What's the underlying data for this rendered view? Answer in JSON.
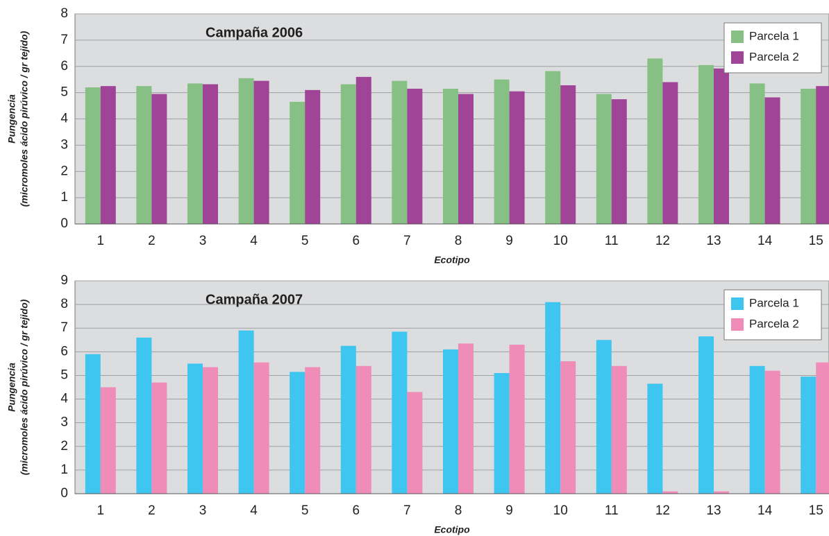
{
  "chart_data": [
    {
      "type": "bar",
      "title": "Campaña 2006",
      "x_label": "Ecotipo",
      "y_label": [
        "Pungencia",
        "(micromoles ácido pirúvico / gr tejido)"
      ],
      "categories": [
        "1",
        "2",
        "3",
        "4",
        "5",
        "6",
        "7",
        "8",
        "9",
        "10",
        "11",
        "12",
        "13",
        "14",
        "15"
      ],
      "series": [
        {
          "name": "Parcela 1",
          "color": "#86c084",
          "values": [
            5.2,
            5.25,
            5.35,
            5.55,
            4.65,
            5.32,
            5.45,
            5.15,
            5.5,
            5.82,
            4.95,
            6.3,
            6.05,
            5.35,
            5.15
          ]
        },
        {
          "name": "Parcela 2",
          "color": "#a04498",
          "values": [
            5.25,
            4.95,
            5.32,
            5.45,
            5.1,
            5.6,
            5.15,
            4.95,
            5.05,
            5.28,
            4.75,
            5.4,
            5.92,
            4.82,
            5.25
          ]
        }
      ],
      "ylim": [
        0,
        8
      ],
      "yticks": [
        0,
        1,
        2,
        3,
        4,
        5,
        6,
        7,
        8
      ],
      "grid": true,
      "legend": "top-right"
    },
    {
      "type": "bar",
      "title": "Campaña 2007",
      "x_label": "Ecotipo",
      "y_label": [
        "Pungencia",
        "(micromoles ácido pirúvico / gr tejido)"
      ],
      "categories": [
        "1",
        "2",
        "3",
        "4",
        "5",
        "6",
        "7",
        "8",
        "9",
        "10",
        "11",
        "12",
        "13",
        "14",
        "15"
      ],
      "series": [
        {
          "name": "Parcela 1",
          "color": "#3ec5f0",
          "values": [
            5.9,
            6.6,
            5.5,
            6.9,
            5.15,
            6.25,
            6.85,
            6.1,
            5.1,
            8.1,
            6.5,
            4.65,
            6.65,
            5.4,
            4.95
          ]
        },
        {
          "name": "Parcela 2",
          "color": "#f08cb8",
          "values": [
            4.5,
            4.7,
            5.35,
            5.55,
            5.35,
            5.4,
            4.3,
            6.35,
            6.3,
            5.6,
            5.4,
            0.1,
            0.1,
            5.2,
            5.55
          ]
        }
      ],
      "ylim": [
        0,
        9
      ],
      "yticks": [
        0,
        1,
        2,
        3,
        4,
        5,
        6,
        7,
        8,
        9
      ],
      "grid": true,
      "legend": "top-right"
    }
  ]
}
